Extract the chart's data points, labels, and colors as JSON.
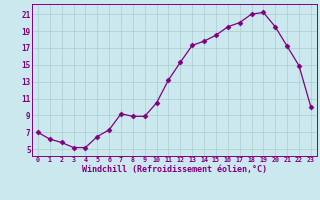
{
  "x": [
    0,
    1,
    2,
    3,
    4,
    5,
    6,
    7,
    8,
    9,
    10,
    11,
    12,
    13,
    14,
    15,
    16,
    17,
    18,
    19,
    20,
    21,
    22,
    23
  ],
  "y": [
    7.0,
    6.2,
    5.8,
    5.2,
    5.2,
    6.5,
    7.3,
    9.2,
    8.9,
    8.9,
    10.5,
    13.2,
    15.3,
    17.3,
    17.8,
    18.5,
    19.5,
    20.0,
    21.0,
    21.2,
    19.5,
    17.2,
    14.9,
    10.0
  ],
  "line_color": "#800080",
  "marker": "D",
  "marker_size": 2.5,
  "bg_color": "#cce8ef",
  "grid_color": "#aacccc",
  "xlabel": "Windchill (Refroidissement éolien,°C)",
  "yticks": [
    5,
    7,
    9,
    11,
    13,
    15,
    17,
    19,
    21
  ],
  "xticks": [
    0,
    1,
    2,
    3,
    4,
    5,
    6,
    7,
    8,
    9,
    10,
    11,
    12,
    13,
    14,
    15,
    16,
    17,
    18,
    19,
    20,
    21,
    22,
    23
  ],
  "ylim": [
    4.2,
    22.2
  ],
  "xlim": [
    -0.5,
    23.5
  ]
}
